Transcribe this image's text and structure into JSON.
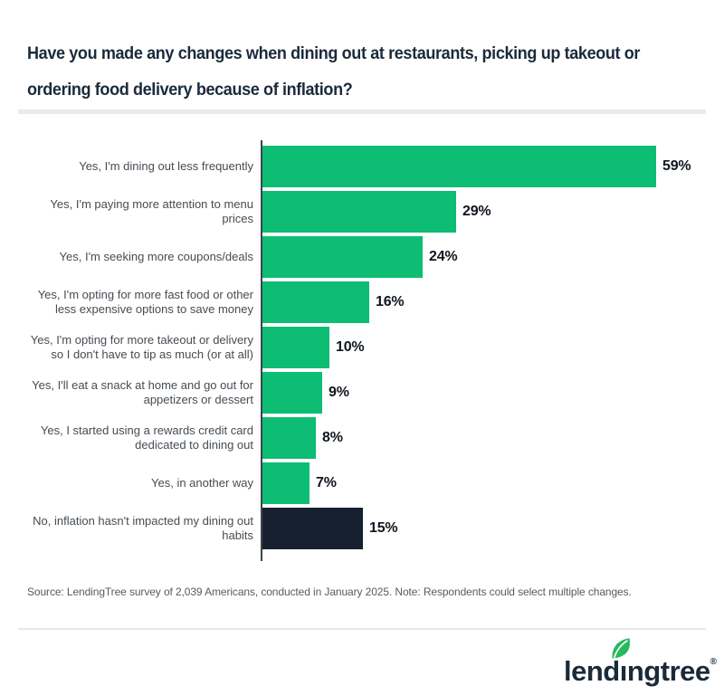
{
  "header": {
    "title_line1": "Have you made any changes when dining out at restaurants, picking up takeout or",
    "title_line2": "ordering food delivery because of inflation?"
  },
  "chart_data": {
    "type": "bar",
    "orientation": "horizontal",
    "title": "Have you made any changes when dining out at restaurants, picking up takeout or ordering food delivery because of inflation?",
    "categories": [
      "Yes, I'm dining out less frequently",
      "Yes, I'm paying more attention to menu\nprices",
      "Yes, I'm seeking more coupons/deals",
      "Yes, I'm opting for more fast food or other\nless expensive options to save money",
      "Yes, I'm opting for more takeout or delivery\nso I don't have to tip as much (or at all)",
      "Yes, I'll eat a snack at home and go out for\nappetizers or dessert",
      "Yes, I started using a rewards credit card\ndedicated to dining out",
      "Yes, in another way",
      "No, inflation hasn't impacted my dining out\nhabits"
    ],
    "values": [
      59,
      29,
      24,
      16,
      10,
      9,
      8,
      7,
      15
    ],
    "value_labels": [
      "59%",
      "29%",
      "24%",
      "16%",
      "10%",
      "9%",
      "8%",
      "7%",
      "15%"
    ],
    "bar_colors": [
      "#0dbd74",
      "#0dbd74",
      "#0dbd74",
      "#0dbd74",
      "#0dbd74",
      "#0dbd74",
      "#0dbd74",
      "#0dbd74",
      "#16202e"
    ],
    "xlabel": "",
    "ylabel": "",
    "xlim": [
      0,
      62
    ],
    "grid": false,
    "legend": false,
    "data_labels": true
  },
  "source_note": "Source: LendingTree survey of 2,039 Americans, conducted in January 2025. Note: Respondents could select multiple changes.",
  "logo": {
    "prefix": "lend",
    "dotless_i": "ı",
    "suffix": "ngtree",
    "registered": "®"
  },
  "colors": {
    "bar_green": "#0dbd74",
    "bar_navy": "#16202e",
    "title_navy": "#1b2a3a",
    "label_gray": "#454c53",
    "source_gray": "#555c63",
    "divider_gray": "#e9eaea",
    "axis_dark": "#3e444b",
    "leaf_green": "#27b95f"
  }
}
